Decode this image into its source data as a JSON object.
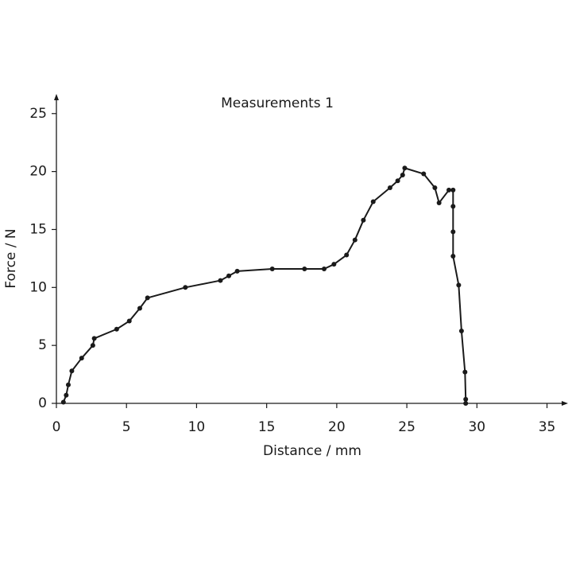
{
  "chart_data": {
    "type": "line",
    "title": "Measurements 1",
    "x_label": "Distance / mm",
    "y_label": "Force / N",
    "x": [
      0.5,
      0.7,
      0.85,
      1.1,
      1.8,
      2.6,
      2.7,
      4.3,
      5.2,
      5.95,
      6.5,
      9.2,
      11.7,
      12.3,
      12.9,
      15.4,
      17.7,
      19.1,
      19.8,
      20.7,
      21.3,
      21.9,
      22.6,
      23.8,
      24.35,
      24.7,
      24.85,
      26.2,
      27.0,
      27.3,
      28.0,
      28.3,
      28.3,
      28.3,
      28.3,
      28.7,
      28.9,
      29.15,
      29.2,
      29.2
    ],
    "series": [
      {
        "name": "Measurements 1",
        "color": "#1a1a1a",
        "values": [
          0.1,
          0.7,
          1.6,
          2.8,
          3.9,
          5.0,
          5.6,
          6.4,
          7.1,
          8.2,
          9.1,
          10.0,
          10.6,
          11.0,
          11.4,
          11.6,
          11.6,
          11.6,
          12.0,
          12.8,
          14.1,
          15.8,
          17.4,
          18.6,
          19.2,
          19.7,
          20.3,
          19.8,
          18.6,
          17.3,
          18.4,
          18.4,
          17.0,
          14.8,
          12.7,
          10.2,
          6.25,
          2.7,
          0.35,
          0.0
        ]
      }
    ],
    "xlim": [
      0,
      36.5
    ],
    "ylim": [
      0,
      26.7
    ],
    "xticks": [
      0,
      5,
      10,
      15,
      20,
      25,
      30,
      35
    ],
    "yticks": [
      0,
      5,
      10,
      15,
      20,
      25
    ]
  }
}
